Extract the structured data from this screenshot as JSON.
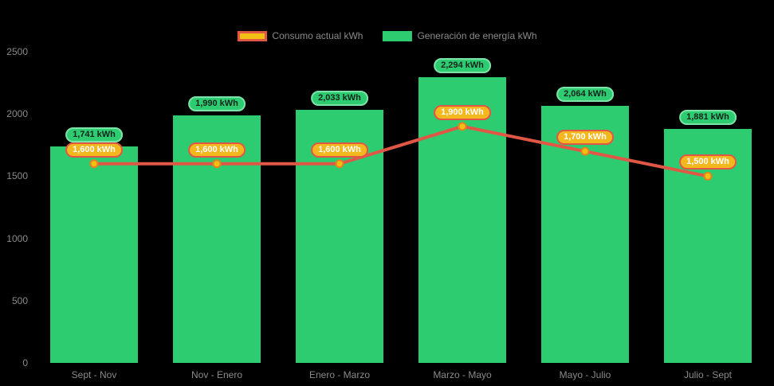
{
  "chart_data": {
    "type": "bar",
    "title": "",
    "categories": [
      "Sept - Nov",
      "Nov - Enero",
      "Enero - Marzo",
      "Marzo - Mayo",
      "Mayo - Julio",
      "Julio - Sept"
    ],
    "series": [
      {
        "name": "Consumo actual kWh",
        "type": "line",
        "values": [
          1600,
          1600,
          1600,
          1900,
          1700,
          1500
        ],
        "value_labels": [
          "1,600 kWh",
          "1,600 kWh",
          "1,600 kWh",
          "1,900 kWh",
          "1,700 kWh",
          "1,500 kWh"
        ],
        "line_color": "#e15746",
        "point_fill": "#f2c012",
        "point_border": "#e8821e",
        "label_bg": "#f2b81d",
        "label_border": "#e15746",
        "label_text_color": "#ffffff"
      },
      {
        "name": "Generación de energía kWh",
        "type": "bar",
        "values": [
          1741,
          1990,
          2033,
          2294,
          2064,
          1881
        ],
        "value_labels": [
          "1,741 kWh",
          "1,990 kWh",
          "2,033 kWh",
          "2,294 kWh",
          "2,064 kWh",
          "1,881 kWh"
        ],
        "bar_color": "#2ecc71",
        "label_bg": "#2ecc71",
        "label_border": "#7be3a8",
        "label_text_color": "#15231b"
      }
    ],
    "ylim": [
      0,
      2500
    ],
    "yticks": [
      0,
      500,
      1000,
      1500,
      2000,
      2500
    ],
    "grid": false,
    "legend_position": "top",
    "background": "#000000",
    "axis_text_color": "#8a8a8a",
    "xlabel": "",
    "ylabel": ""
  }
}
